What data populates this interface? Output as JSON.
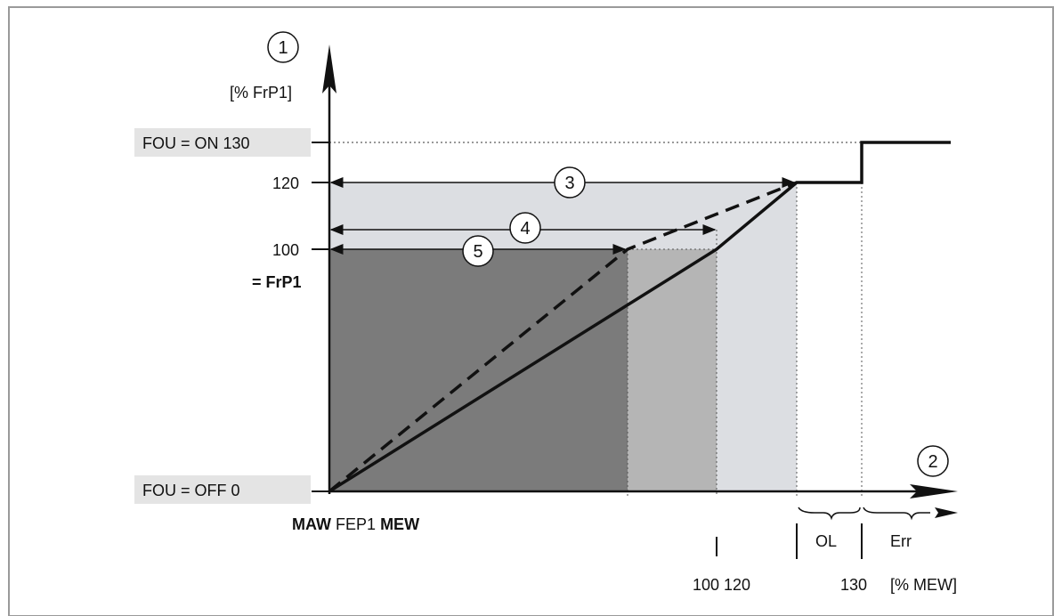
{
  "y_axis": {
    "marker": "1",
    "unit": "[% FrP1]",
    "tick_120": "120",
    "tick_100": "100",
    "frp1_label": "= FrP1",
    "fou_on": "FOU = ON 130",
    "fou_off": "FOU = OFF 0"
  },
  "x_axis": {
    "marker": "2",
    "origin_label_maw": "MAW",
    "origin_label_fep1": "FEP1",
    "origin_label_mew": "MEW",
    "tick_100_120": "100 120",
    "tick_130": "130",
    "unit": "[% MEW]",
    "range_ol": "OL",
    "range_err": "Err"
  },
  "callouts": {
    "c3": "3",
    "c4": "4",
    "c5": "5"
  },
  "colors": {
    "region_dark": "#7b7b7b",
    "region_mid": "#b5b5b5",
    "region_light": "#dcdee2",
    "label_bg": "#e4e4e4",
    "border": "#9a9a9a",
    "line": "#111111"
  }
}
